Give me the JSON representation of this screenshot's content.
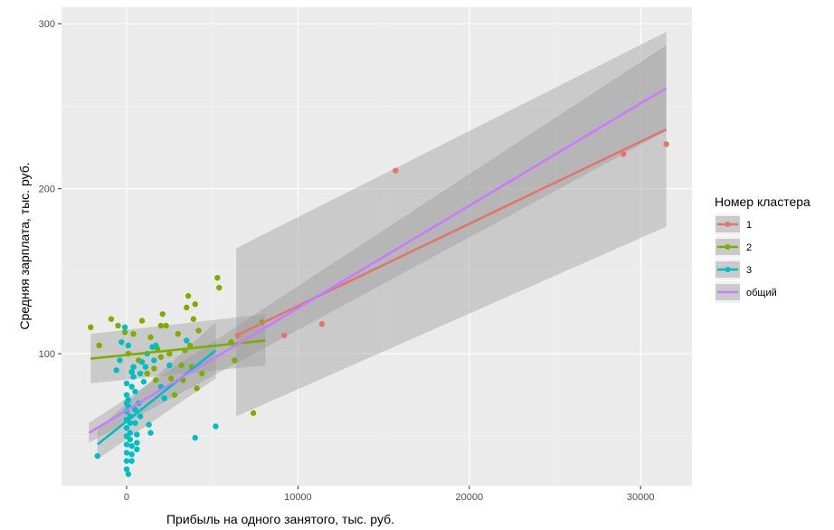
{
  "chart_data": {
    "type": "scatter",
    "xlabel": "Прибыль на одного занятого, тыс. руб.",
    "ylabel": "Средняя зарплата, тыс. руб.",
    "xlim": [
      -3800,
      33000
    ],
    "ylim": [
      20,
      310
    ],
    "x_ticks": [
      0,
      10000,
      20000,
      30000
    ],
    "x_tick_labels": [
      "0",
      "10000",
      "20000",
      "30000"
    ],
    "y_ticks": [
      100,
      200,
      300
    ],
    "y_tick_labels": [
      "100",
      "200",
      "300"
    ],
    "grid": true,
    "legend": {
      "title": "Номер кластера",
      "position": "right",
      "entries": [
        {
          "label": "1",
          "color": "#e0766e"
        },
        {
          "label": "2",
          "color": "#7cae00"
        },
        {
          "label": "3",
          "color": "#00bfc4"
        },
        {
          "label": "общий",
          "color": "#c77cff"
        }
      ]
    },
    "series": [
      {
        "name": "1",
        "color": "#e0766e",
        "points": [
          [
            6500,
            111
          ],
          [
            9200,
            111
          ],
          [
            11400,
            118
          ],
          [
            15700,
            211
          ],
          [
            29000,
            221
          ],
          [
            31500,
            227
          ]
        ],
        "fit": {
          "x": [
            6400,
            31500
          ],
          "y": [
            111,
            236
          ],
          "lo": [
            62,
            177
          ],
          "hi": [
            164,
            295
          ]
        }
      },
      {
        "name": "2",
        "color": "#7cae00",
        "points": [
          [
            -2100,
            116
          ],
          [
            -1600,
            105
          ],
          [
            -900,
            121
          ],
          [
            -500,
            117
          ],
          [
            -100,
            113
          ],
          [
            100,
            100
          ],
          [
            400,
            112
          ],
          [
            700,
            96
          ],
          [
            900,
            120
          ],
          [
            1200,
            88
          ],
          [
            1400,
            110
          ],
          [
            1600,
            91
          ],
          [
            1800,
            103
          ],
          [
            2000,
            98
          ],
          [
            2100,
            124
          ],
          [
            2300,
            117
          ],
          [
            2600,
            85
          ],
          [
            2800,
            75
          ],
          [
            3000,
            112
          ],
          [
            3200,
            93
          ],
          [
            3300,
            84
          ],
          [
            3500,
            128
          ],
          [
            3600,
            135
          ],
          [
            3700,
            105
          ],
          [
            3800,
            92
          ],
          [
            3900,
            121
          ],
          [
            4000,
            130
          ],
          [
            4100,
            79
          ],
          [
            4200,
            114
          ],
          [
            4400,
            88
          ],
          [
            5300,
            146
          ],
          [
            5400,
            140
          ],
          [
            6100,
            107
          ],
          [
            6300,
            96
          ],
          [
            7400,
            64
          ],
          [
            7900,
            119
          ],
          [
            2000,
            117
          ],
          [
            1700,
            84
          ],
          [
            2500,
            100
          ],
          [
            3400,
            102
          ]
        ],
        "fit": {
          "x": [
            -2100,
            8100
          ],
          "y": [
            97,
            108
          ],
          "lo": [
            82,
            93
          ],
          "hi": [
            112,
            124
          ]
        }
      },
      {
        "name": "3",
        "color": "#00bfc4",
        "points": [
          [
            -1700,
            38
          ],
          [
            -600,
            90
          ],
          [
            -300,
            107
          ],
          [
            -100,
            116
          ],
          [
            0,
            82
          ],
          [
            0,
            75
          ],
          [
            0,
            70
          ],
          [
            0,
            65
          ],
          [
            0,
            60
          ],
          [
            0,
            55
          ],
          [
            0,
            50
          ],
          [
            0,
            45
          ],
          [
            0,
            40
          ],
          [
            0,
            35
          ],
          [
            0,
            30
          ],
          [
            100,
            27
          ],
          [
            100,
            72
          ],
          [
            100,
            68
          ],
          [
            200,
            62
          ],
          [
            200,
            58
          ],
          [
            200,
            52
          ],
          [
            200,
            48
          ],
          [
            300,
            44
          ],
          [
            300,
            39
          ],
          [
            300,
            35
          ],
          [
            300,
            80
          ],
          [
            400,
            86
          ],
          [
            400,
            92
          ],
          [
            500,
            77
          ],
          [
            500,
            66
          ],
          [
            500,
            58
          ],
          [
            600,
            51
          ],
          [
            600,
            46
          ],
          [
            600,
            42
          ],
          [
            700,
            70
          ],
          [
            800,
            88
          ],
          [
            900,
            95
          ],
          [
            1000,
            83
          ],
          [
            1100,
            92
          ],
          [
            1200,
            100
          ],
          [
            1300,
            57
          ],
          [
            1400,
            52
          ],
          [
            1500,
            104
          ],
          [
            1700,
            105
          ],
          [
            2000,
            80
          ],
          [
            2200,
            73
          ],
          [
            2500,
            93
          ],
          [
            3500,
            108
          ],
          [
            4000,
            49
          ],
          [
            5200,
            56
          ],
          [
            -400,
            96
          ],
          [
            100,
            105
          ],
          [
            800,
            62
          ],
          [
            1600,
            96
          ],
          [
            300,
            89
          ]
        ],
        "fit": {
          "x": [
            -1700,
            5200
          ],
          "y": [
            45,
            102
          ],
          "lo": [
            36,
            85
          ],
          "hi": [
            54,
            119
          ]
        }
      }
    ],
    "overall_fit": {
      "name": "общий",
      "color": "#c77cff",
      "x": [
        -2200,
        31500
      ],
      "y": [
        52,
        261
      ],
      "lo": [
        46,
        235
      ],
      "hi": [
        58,
        287
      ]
    }
  }
}
